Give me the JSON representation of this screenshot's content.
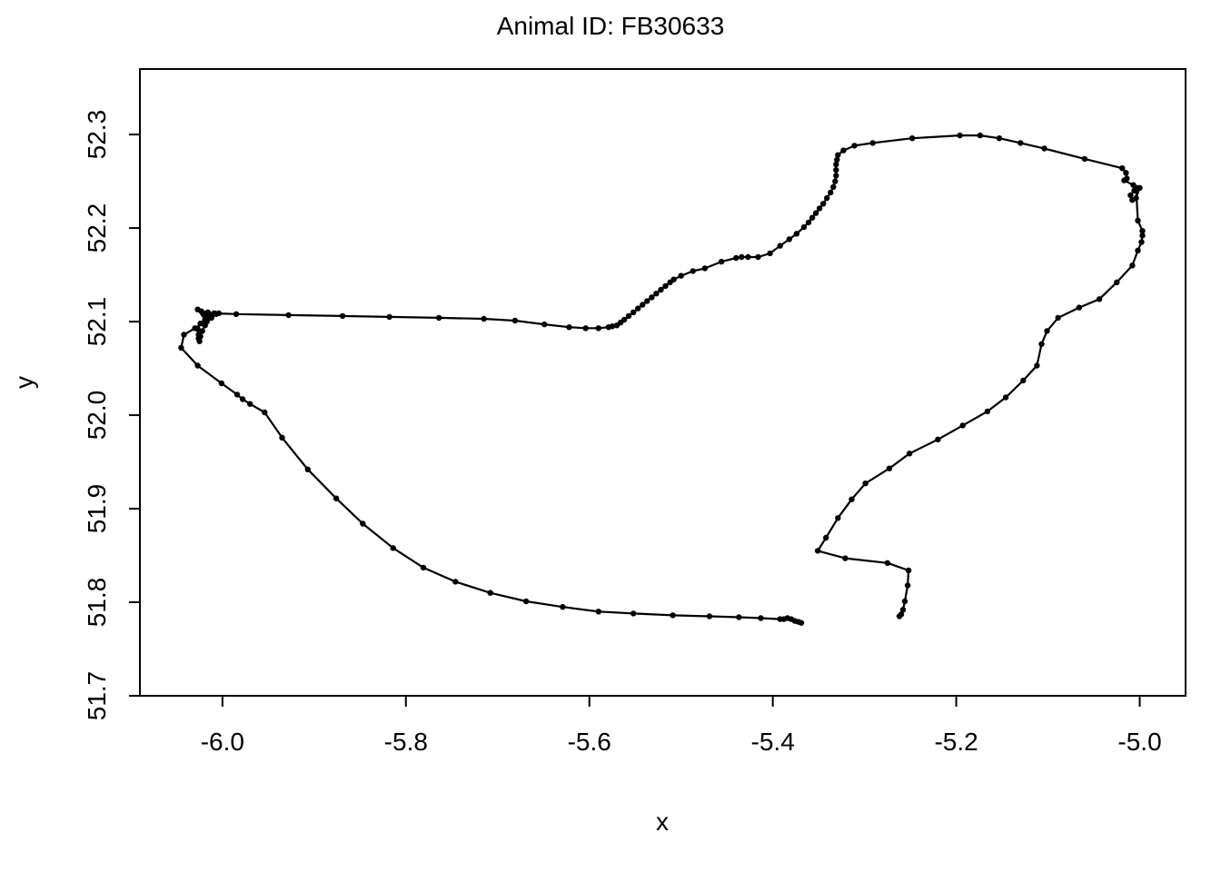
{
  "chart_data": {
    "type": "line",
    "title": "Animal ID: FB30633",
    "xlabel": "x",
    "ylabel": "y",
    "xlim": [
      -6.09,
      -4.95
    ],
    "ylim": [
      51.7,
      52.37
    ],
    "x_ticks": [
      {
        "value": -6.0,
        "label": "-6.0"
      },
      {
        "value": -5.8,
        "label": "-5.8"
      },
      {
        "value": -5.6,
        "label": "-5.6"
      },
      {
        "value": -5.4,
        "label": "-5.4"
      },
      {
        "value": -5.2,
        "label": "-5.2"
      },
      {
        "value": -5.0,
        "label": "-5.0"
      }
    ],
    "y_ticks": [
      {
        "value": 51.7,
        "label": "51.7"
      },
      {
        "value": 51.8,
        "label": "51.8"
      },
      {
        "value": 51.9,
        "label": "51.9"
      },
      {
        "value": 52.0,
        "label": "52.0"
      },
      {
        "value": 52.1,
        "label": "52.1"
      },
      {
        "value": 52.2,
        "label": "52.2"
      },
      {
        "value": 52.3,
        "label": "52.3"
      }
    ],
    "grid": false,
    "marker": "dot",
    "color": "#000000",
    "points": [
      [
        -5.369,
        51.778
      ],
      [
        -5.372,
        51.779
      ],
      [
        -5.376,
        51.78
      ],
      [
        -5.38,
        51.782
      ],
      [
        -5.384,
        51.783
      ],
      [
        -5.388,
        51.782
      ],
      [
        -5.392,
        51.782
      ],
      [
        -5.413,
        51.783
      ],
      [
        -5.437,
        51.784
      ],
      [
        -5.469,
        51.785
      ],
      [
        -5.509,
        51.786
      ],
      [
        -5.552,
        51.788
      ],
      [
        -5.59,
        51.79
      ],
      [
        -5.629,
        51.795
      ],
      [
        -5.669,
        51.801
      ],
      [
        -5.708,
        51.81
      ],
      [
        -5.746,
        51.822
      ],
      [
        -5.781,
        51.837
      ],
      [
        -5.814,
        51.858
      ],
      [
        -5.847,
        51.884
      ],
      [
        -5.876,
        51.911
      ],
      [
        -5.907,
        51.942
      ],
      [
        -5.935,
        51.976
      ],
      [
        -5.954,
        52.003
      ],
      [
        -5.97,
        52.012
      ],
      [
        -5.978,
        52.017
      ],
      [
        -5.984,
        52.022
      ],
      [
        -6.001,
        52.034
      ],
      [
        -6.027,
        52.053
      ],
      [
        -6.045,
        52.072
      ],
      [
        -6.042,
        52.086
      ],
      [
        -6.03,
        52.093
      ],
      [
        -6.022,
        52.098
      ],
      [
        -6.013,
        52.104
      ],
      [
        -6.007,
        52.108
      ],
      [
        -6.004,
        52.109
      ],
      [
        -6.012,
        52.106
      ],
      [
        -6.019,
        52.103
      ],
      [
        -6.024,
        52.098
      ],
      [
        -6.027,
        52.092
      ],
      [
        -6.026,
        52.086
      ],
      [
        -6.026,
        52.082
      ],
      [
        -6.025,
        52.079
      ],
      [
        -6.024,
        52.084
      ],
      [
        -6.022,
        52.09
      ],
      [
        -6.019,
        52.096
      ],
      [
        -6.017,
        52.1
      ],
      [
        -6.012,
        52.104
      ],
      [
        -6.021,
        52.108
      ],
      [
        -6.027,
        52.113
      ],
      [
        -6.023,
        52.111
      ],
      [
        -6.016,
        52.11
      ],
      [
        -6.009,
        52.109
      ],
      [
        -5.985,
        52.108
      ],
      [
        -5.928,
        52.107
      ],
      [
        -5.869,
        52.106
      ],
      [
        -5.818,
        52.105
      ],
      [
        -5.764,
        52.104
      ],
      [
        -5.715,
        52.103
      ],
      [
        -5.681,
        52.101
      ],
      [
        -5.649,
        52.097
      ],
      [
        -5.622,
        52.094
      ],
      [
        -5.604,
        52.093
      ],
      [
        -5.59,
        52.093
      ],
      [
        -5.579,
        52.094
      ],
      [
        -5.575,
        52.095
      ],
      [
        -5.57,
        52.096
      ],
      [
        -5.566,
        52.099
      ],
      [
        -5.562,
        52.102
      ],
      [
        -5.557,
        52.106
      ],
      [
        -5.552,
        52.11
      ],
      [
        -5.547,
        52.114
      ],
      [
        -5.542,
        52.118
      ],
      [
        -5.537,
        52.122
      ],
      [
        -5.532,
        52.126
      ],
      [
        -5.527,
        52.13
      ],
      [
        -5.522,
        52.134
      ],
      [
        -5.517,
        52.138
      ],
      [
        -5.512,
        52.142
      ],
      [
        -5.508,
        52.145
      ],
      [
        -5.5,
        52.149
      ],
      [
        -5.487,
        52.154
      ],
      [
        -5.474,
        52.157
      ],
      [
        -5.456,
        52.164
      ],
      [
        -5.44,
        52.168
      ],
      [
        -5.434,
        52.169
      ],
      [
        -5.427,
        52.169
      ],
      [
        -5.416,
        52.169
      ],
      [
        -5.403,
        52.173
      ],
      [
        -5.392,
        52.181
      ],
      [
        -5.382,
        52.188
      ],
      [
        -5.374,
        52.194
      ],
      [
        -5.366,
        52.201
      ],
      [
        -5.361,
        52.206
      ],
      [
        -5.357,
        52.211
      ],
      [
        -5.353,
        52.216
      ],
      [
        -5.349,
        52.221
      ],
      [
        -5.345,
        52.226
      ],
      [
        -5.341,
        52.232
      ],
      [
        -5.337,
        52.238
      ],
      [
        -5.334,
        52.244
      ],
      [
        -5.332,
        52.25
      ],
      [
        -5.331,
        52.256
      ],
      [
        -5.331,
        52.262
      ],
      [
        -5.331,
        52.268
      ],
      [
        -5.33,
        52.273
      ],
      [
        -5.329,
        52.278
      ],
      [
        -5.323,
        52.283
      ],
      [
        -5.311,
        52.288
      ],
      [
        -5.291,
        52.291
      ],
      [
        -5.248,
        52.296
      ],
      [
        -5.196,
        52.299
      ],
      [
        -5.174,
        52.299
      ],
      [
        -5.153,
        52.296
      ],
      [
        -5.13,
        52.291
      ],
      [
        -5.104,
        52.285
      ],
      [
        -5.06,
        52.274
      ],
      [
        -5.019,
        52.264
      ],
      [
        -5.015,
        52.259
      ],
      [
        -5.014,
        52.253
      ],
      [
        -5.017,
        52.251
      ],
      [
        -5.007,
        52.246
      ],
      [
        -5.003,
        52.243
      ],
      [
        -5.006,
        52.24
      ],
      [
        -5.01,
        52.235
      ],
      [
        -5.008,
        52.23
      ],
      [
        -5.004,
        52.232
      ],
      [
        -5.0,
        52.243
      ],
      [
        -5.004,
        52.242
      ],
      [
        -5.002,
        52.208
      ],
      [
        -4.997,
        52.197
      ],
      [
        -4.997,
        52.192
      ],
      [
        -4.998,
        52.185
      ],
      [
        -5.002,
        52.176
      ],
      [
        -5.008,
        52.16
      ],
      [
        -5.025,
        52.142
      ],
      [
        -5.044,
        52.124
      ],
      [
        -5.066,
        52.115
      ],
      [
        -5.089,
        52.104
      ],
      [
        -5.101,
        52.09
      ],
      [
        -5.107,
        52.076
      ],
      [
        -5.112,
        52.053
      ],
      [
        -5.127,
        52.037
      ],
      [
        -5.146,
        52.019
      ],
      [
        -5.166,
        52.004
      ],
      [
        -5.193,
        51.989
      ],
      [
        -5.22,
        51.974
      ],
      [
        -5.251,
        51.959
      ],
      [
        -5.273,
        51.943
      ],
      [
        -5.299,
        51.927
      ],
      [
        -5.314,
        51.91
      ],
      [
        -5.329,
        51.89
      ],
      [
        -5.342,
        51.869
      ],
      [
        -5.351,
        51.855
      ],
      [
        -5.321,
        51.847
      ],
      [
        -5.275,
        51.842
      ],
      [
        -5.252,
        51.834
      ],
      [
        -5.253,
        51.818
      ],
      [
        -5.256,
        51.801
      ],
      [
        -5.258,
        51.792
      ],
      [
        -5.26,
        51.787
      ],
      [
        -5.262,
        51.785
      ]
    ]
  }
}
